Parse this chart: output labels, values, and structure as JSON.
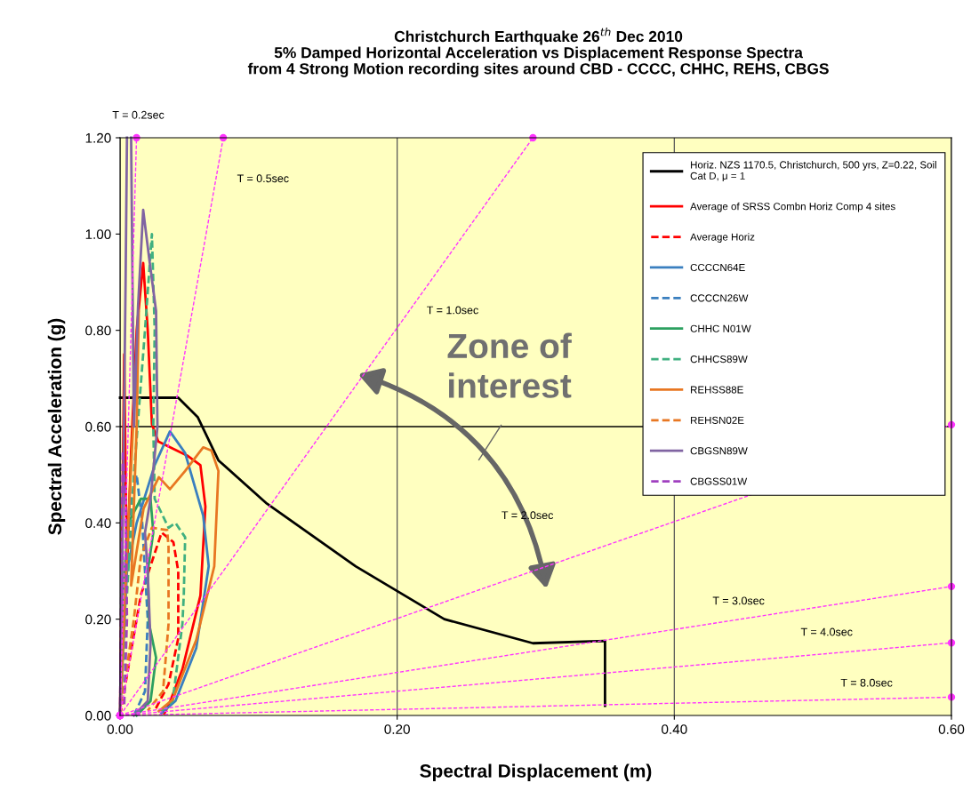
{
  "chart_data": {
    "type": "line",
    "title": "Christchurch Earthquake 26$^{th}$ Dec 2010\n5% Damped Horizontal Acceleration vs Displacement Response Spectra\nfrom 4 Strong Motion recording sites around CBD - CCCC, CHHC, REHS, CBGS",
    "xlabel": "Spectral Displacement (m)",
    "ylabel": "Spectral Acceleration (g)",
    "xlim": [
      0,
      0.6
    ],
    "ylim": [
      0,
      1.2
    ],
    "xticks": [
      {
        "value": 0,
        "label": "0.00"
      },
      {
        "value": 0.2,
        "label": "0.20"
      },
      {
        "value": 0.4,
        "label": "0.40"
      },
      {
        "value": 0.6,
        "label": "0.60"
      }
    ],
    "yticks": [
      {
        "value": 0,
        "label": "0.00"
      },
      {
        "value": 0.2,
        "label": "0.20"
      },
      {
        "value": 0.4,
        "label": "0.40"
      },
      {
        "value": 0.6,
        "label": "0.60"
      },
      {
        "value": 0.8,
        "label": "0.80"
      },
      {
        "value": 1.0,
        "label": "1.00"
      },
      {
        "value": 1.2,
        "label": "1.20"
      }
    ],
    "grid": "x",
    "legend": "top right",
    "ref_lines": [
      {
        "axis": "y",
        "value": 0.6,
        "color": "#000000",
        "line_style": "solid"
      }
    ],
    "series": [
      {
        "name": "Horiz. NZS 1170.5, Christchurch, 500 yrs, Z=0.22, Soil\nCat D, μ = 1",
        "color": "#000000",
        "line_style": "solid",
        "x": [
          0,
          0.042,
          0.056,
          0.071,
          0.106,
          0.17,
          0.234,
          0.298,
          0.35,
          0.35
        ],
        "values": [
          0.66,
          0.66,
          0.62,
          0.53,
          0.44,
          0.31,
          0.2,
          0.15,
          0.155,
          0.02
        ]
      },
      {
        "name": "Average of SRSS Combn Horiz Comp 4 sites",
        "color": "#ff0000",
        "line_style": "solid",
        "x": [
          0,
          0.003,
          0.004,
          0.005,
          0.008,
          0.012,
          0.0167,
          0.02,
          0.023,
          0.0276,
          0.049,
          0.058,
          0.0616,
          0.058,
          0.045,
          0.036,
          0.032
        ],
        "values": [
          0,
          0.75,
          0.5,
          0.3,
          0.55,
          0.8,
          0.94,
          0.8,
          0.605,
          0.569,
          0.539,
          0.52,
          0.434,
          0.249,
          0.096,
          0.028,
          0.004
        ]
      },
      {
        "name": "Average Horiz",
        "color": "#ff0000",
        "line_style": "dashed",
        "x": [
          0,
          0.015,
          0.03,
          0.0385,
          0.042,
          0.042,
          0.035,
          0.025
        ],
        "values": [
          0,
          0.25,
          0.38,
          0.36,
          0.3,
          0.16,
          0.065,
          0.01
        ]
      },
      {
        "name": "CCCCN64E",
        "color": "#3a7fbf",
        "line_style": "solid",
        "x": [
          0,
          0.005,
          0.012,
          0.025,
          0.036,
          0.047,
          0.06,
          0.064,
          0.055,
          0.04,
          0.03
        ],
        "values": [
          0,
          0.3,
          0.4,
          0.52,
          0.59,
          0.545,
          0.415,
          0.31,
          0.14,
          0.03,
          0.005
        ]
      },
      {
        "name": "CCCCN26W",
        "color": "#3a7fbf",
        "line_style": "dashed",
        "x": [
          0,
          0.004,
          0.008,
          0.012,
          0.016,
          0.02,
          0.018,
          0.01
        ],
        "values": [
          0,
          0.25,
          0.45,
          0.5,
          0.4,
          0.2,
          0.05,
          0
        ]
      },
      {
        "name": "CHHC N01W",
        "color": "#2ca060",
        "line_style": "solid",
        "x": [
          0,
          0.002,
          0.006,
          0.015,
          0.022,
          0.024,
          0.02,
          0.021,
          0.026,
          0.022,
          0.012
        ],
        "values": [
          0,
          0.25,
          0.4,
          0.45,
          0.45,
          0.38,
          0.3,
          0.19,
          0.12,
          0.03,
          0
        ]
      },
      {
        "name": "CHHCS89W",
        "color": "#40b080",
        "line_style": "dashed",
        "x": [
          0,
          0.01,
          0.018,
          0.023,
          0.025,
          0.024,
          0.025,
          0.035,
          0.04,
          0.047,
          0.046,
          0.045,
          0.038,
          0.028
        ],
        "values": [
          0,
          0.5,
          0.8,
          1.0,
          0.8,
          0.6,
          0.45,
          0.39,
          0.4,
          0.37,
          0.25,
          0.19,
          0.03,
          0.005
        ]
      },
      {
        "name": "REHSS88E",
        "color": "#e87722",
        "line_style": "solid",
        "x": [
          0,
          0.006,
          0.0135,
          0.012,
          0.008,
          0.017,
          0.028,
          0.036,
          0.047,
          0.06,
          0.066,
          0.071,
          0.068,
          0.055,
          0.038,
          0.028
        ],
        "values": [
          0,
          0.4,
          0.84,
          0.6,
          0.27,
          0.43,
          0.495,
          0.47,
          0.508,
          0.557,
          0.55,
          0.508,
          0.31,
          0.157,
          0.033,
          0.009
        ]
      },
      {
        "name": "REHSN02E",
        "color": "#e87722",
        "line_style": "dashed",
        "x": [
          0,
          0.01,
          0.015,
          0.023,
          0.034,
          0.035,
          0.035,
          0.031,
          0.02
        ],
        "values": [
          0,
          0.2,
          0.33,
          0.39,
          0.385,
          0.35,
          0.19,
          0.05,
          0.01
        ]
      },
      {
        "name": "CBGSN89W",
        "color": "#8064a2",
        "line_style": "solid",
        "x": [
          0,
          0.002,
          0.004,
          0.005,
          0.0065,
          0.008,
          0.01,
          0.013,
          0.0167,
          0.021,
          0.026,
          0.027,
          0.022,
          0.018,
          0.02,
          0.022,
          0.02,
          0.01
        ],
        "values": [
          0,
          0.4,
          0.9,
          1.2,
          null,
          1.2,
          0.6,
          0.85,
          1.05,
          0.95,
          0.84,
          0.6,
          0.45,
          0.38,
          0.3,
          0.15,
          0.03,
          0
        ]
      },
      {
        "name": "CBGSS01W",
        "color": "#a040c0",
        "line_style": "dashed",
        "x": [
          0,
          0.001,
          0.002,
          0.004,
          0.005,
          0.003
        ],
        "values": [
          0,
          0.3,
          0.55,
          0.45,
          0.2,
          0.02
        ]
      },
      {
        "color": "#ff33ff",
        "line_style": "dashed",
        "marker": "circle",
        "x": [
          0,
          0.0119
        ],
        "values": [
          0,
          1.2
        ]
      },
      {
        "color": "#ff33ff",
        "line_style": "dashed",
        "marker": "circle",
        "x": [
          0,
          0.0745
        ],
        "values": [
          0,
          1.2
        ]
      },
      {
        "color": "#ff33ff",
        "line_style": "dashed",
        "marker": "circle",
        "x": [
          0,
          0.298
        ],
        "values": [
          0,
          1.2
        ]
      },
      {
        "color": "#ff33ff",
        "line_style": "dashed",
        "marker": "circle",
        "x": [
          0,
          0.6
        ],
        "values": [
          0,
          0.604
        ]
      },
      {
        "color": "#ff33ff",
        "line_style": "dashed",
        "marker": "circle",
        "x": [
          0,
          0.6
        ],
        "values": [
          0,
          0.268
        ]
      },
      {
        "color": "#ff33ff",
        "line_style": "dashed",
        "marker": "circle",
        "x": [
          0,
          0.6
        ],
        "values": [
          0,
          0.151
        ]
      },
      {
        "color": "#ff33ff",
        "line_style": "dashed",
        "marker": "circle",
        "x": [
          0,
          0.6
        ],
        "values": [
          0,
          0.038
        ]
      }
    ],
    "annotations": [
      "T = 0.2sec",
      "T = 0.5sec",
      "T = 1.0sec",
      "T = 2.0sec",
      "T = 3.0sec",
      "T = 4.0sec",
      "T = 8.0sec",
      "Zone of\ninterest"
    ]
  }
}
